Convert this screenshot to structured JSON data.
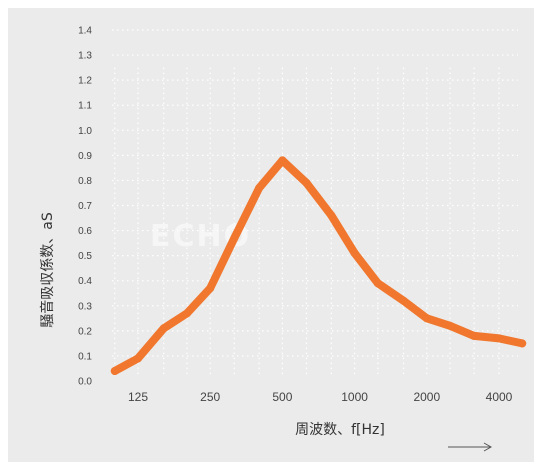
{
  "chart_data": {
    "type": "line",
    "title": "",
    "xlabel": "周波数、f[Hz]",
    "ylabel": "騒音吸収係数、aS",
    "x_scale": "log",
    "x": [
      100,
      125,
      160,
      200,
      250,
      315,
      400,
      500,
      630,
      800,
      1000,
      1250,
      1600,
      2000,
      2500,
      3150,
      4000,
      5000
    ],
    "x_ticks": [
      125,
      250,
      500,
      1000,
      2000,
      4000
    ],
    "x_tick_labels": [
      "125",
      "250",
      "500",
      "1000",
      "2000",
      "4000"
    ],
    "y_ticks": [
      0.0,
      0.1,
      0.2,
      0.3,
      0.4,
      0.5,
      0.6,
      0.7,
      0.8,
      0.9,
      1.0,
      1.1,
      1.2,
      1.3,
      1.4
    ],
    "y_tick_labels": [
      "0.0",
      "0.1",
      "0.2",
      "0.3",
      "0.4",
      "0.5",
      "0.6",
      "0.7",
      "0.8",
      "0.9",
      "1.0",
      "1.1",
      "1.2",
      "1.3",
      "1.4"
    ],
    "ylim": [
      0.0,
      1.4
    ],
    "grid": true,
    "legend": "none",
    "series": [
      {
        "values": [
          0.04,
          0.09,
          0.21,
          0.27,
          0.37,
          0.57,
          0.77,
          0.88,
          0.79,
          0.66,
          0.51,
          0.39,
          0.32,
          0.25,
          0.22,
          0.18,
          0.17,
          0.15
        ]
      }
    ],
    "colors": {
      "series": "#f0772d",
      "background": "#ebebeb",
      "grid": "#ffffff"
    },
    "watermark": "ECHO"
  }
}
